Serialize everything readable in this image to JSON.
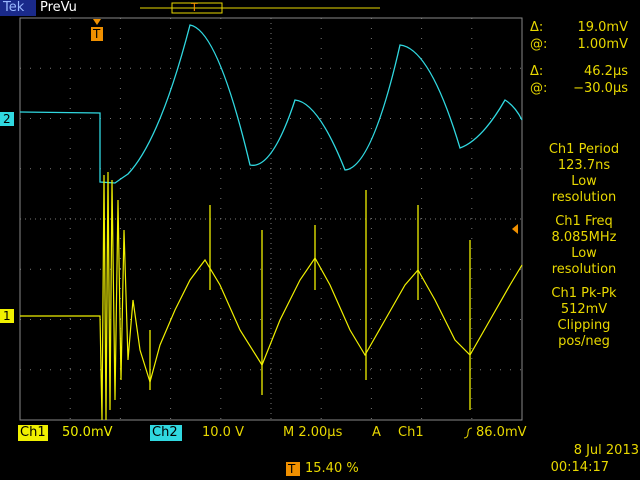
{
  "header": {
    "brand": "Tek",
    "mode": "PreVu"
  },
  "markers": {
    "trigger": "T",
    "ch1": "1",
    "ch2": "2"
  },
  "cursors": [
    {
      "label": "Δ:",
      "value": "19.0mV"
    },
    {
      "label": "@:",
      "value": "1.00mV"
    },
    {
      "label": "Δ:",
      "value": "46.2µs"
    },
    {
      "label": "@:",
      "value": "−30.0µs"
    }
  ],
  "measurements": [
    {
      "name": "Ch1 Period",
      "value": "123.7ns",
      "lines": [
        "Low",
        "resolution"
      ]
    },
    {
      "name": "Ch1 Freq",
      "value": "8.085MHz",
      "lines": [
        "Low",
        "resolution"
      ]
    },
    {
      "name": "Ch1 Pk-Pk",
      "value": "512mV",
      "lines": [
        "Clipping",
        "pos/neg"
      ]
    }
  ],
  "status": {
    "ch1": "Ch1",
    "ch1_scale": "50.0mV",
    "ch2": "Ch2",
    "ch2_scale": "10.0 V",
    "time": "M 2.00µs",
    "trigger_mode": "A",
    "trigger_source": "Ch1",
    "trigger_level": "86.0mV",
    "trigger_position": "15.40 %",
    "date": "8 Jul 2013",
    "clock": "00:14:17"
  }
}
